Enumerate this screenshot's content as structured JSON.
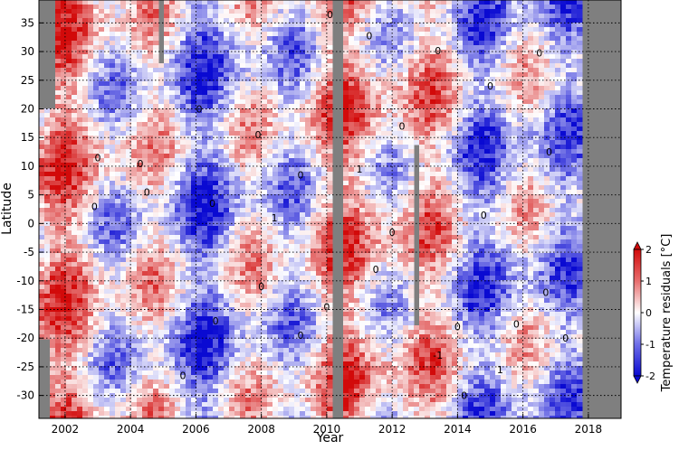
{
  "chart_data": {
    "type": "heatmap",
    "xlabel": "Year",
    "ylabel": "Latitude",
    "xlim": [
      2001.2,
      2019.0
    ],
    "ylim": [
      -34.0,
      39.0
    ],
    "x_ticks": [
      2002,
      2004,
      2006,
      2008,
      2010,
      2012,
      2014,
      2016,
      2018
    ],
    "y_ticks": [
      -30,
      -25,
      -20,
      -15,
      -10,
      -5,
      0,
      5,
      10,
      15,
      20,
      25,
      30,
      35
    ],
    "grid": true,
    "colorbar": {
      "label": "Temperature residuals [°C]",
      "range": [
        -2,
        2
      ],
      "ticks": [
        -2,
        -1,
        0,
        1,
        2
      ],
      "colormap": [
        "#0a0ad2",
        "#ffffff",
        "#d20a0a"
      ],
      "extend": "both"
    },
    "missing_color": "#7f7f7f",
    "contour_levels": [
      -1,
      0,
      1
    ],
    "contour_labels": [
      {
        "x": 2010.1,
        "y": 36.5,
        "text": "0"
      },
      {
        "x": 2011.3,
        "y": 32.8,
        "text": "0"
      },
      {
        "x": 2013.4,
        "y": 30.2,
        "text": "0"
      },
      {
        "x": 2015.0,
        "y": 24.0,
        "text": "0"
      },
      {
        "x": 2016.5,
        "y": 29.8,
        "text": "0"
      },
      {
        "x": 2006.1,
        "y": 20.0,
        "text": "0"
      },
      {
        "x": 2007.9,
        "y": 15.5,
        "text": "0"
      },
      {
        "x": 2003.0,
        "y": 11.5,
        "text": "0"
      },
      {
        "x": 2004.3,
        "y": 10.5,
        "text": "0"
      },
      {
        "x": 2009.2,
        "y": 8.5,
        "text": "0"
      },
      {
        "x": 2012.3,
        "y": 17.0,
        "text": "0"
      },
      {
        "x": 2016.8,
        "y": 12.5,
        "text": "0"
      },
      {
        "x": 2002.9,
        "y": 3.0,
        "text": "0"
      },
      {
        "x": 2004.5,
        "y": 5.5,
        "text": "0"
      },
      {
        "x": 2006.5,
        "y": 3.5,
        "text": "0"
      },
      {
        "x": 2008.4,
        "y": 1.0,
        "text": "1"
      },
      {
        "x": 2011.0,
        "y": 9.5,
        "text": "1"
      },
      {
        "x": 2014.8,
        "y": 1.5,
        "text": "0"
      },
      {
        "x": 2012.0,
        "y": -1.5,
        "text": "0"
      },
      {
        "x": 2006.6,
        "y": -17.0,
        "text": "0"
      },
      {
        "x": 2008.0,
        "y": -11.0,
        "text": "0"
      },
      {
        "x": 2009.2,
        "y": -19.5,
        "text": "0"
      },
      {
        "x": 2010.0,
        "y": -14.5,
        "text": "0"
      },
      {
        "x": 2011.5,
        "y": -8.0,
        "text": "0"
      },
      {
        "x": 2014.0,
        "y": -18.0,
        "text": "0"
      },
      {
        "x": 2015.3,
        "y": -25.5,
        "text": "1"
      },
      {
        "x": 2015.8,
        "y": -17.5,
        "text": "0"
      },
      {
        "x": 2016.7,
        "y": -12.0,
        "text": "0"
      },
      {
        "x": 2017.3,
        "y": -20.0,
        "text": "0"
      },
      {
        "x": 2014.2,
        "y": -30.0,
        "text": "0"
      },
      {
        "x": 2013.4,
        "y": -23.0,
        "text": "-1"
      },
      {
        "x": 2005.6,
        "y": -26.5,
        "text": "0"
      }
    ]
  }
}
